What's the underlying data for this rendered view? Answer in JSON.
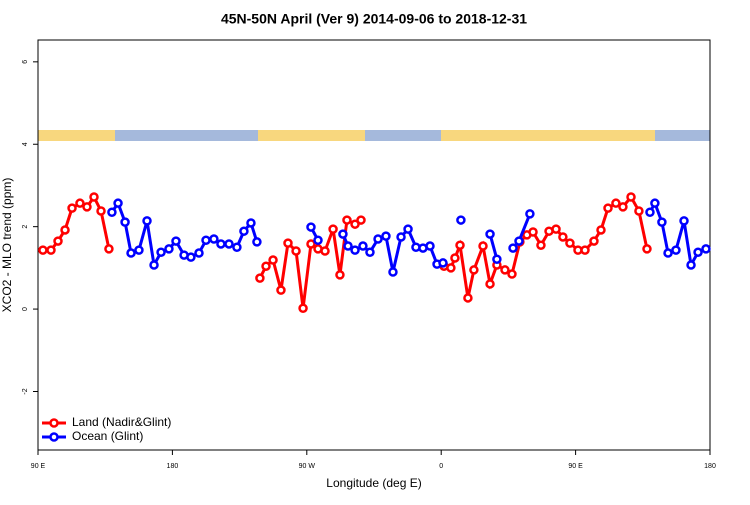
{
  "chart_data": {
    "type": "line",
    "title": "45N-50N April (Ver 9)   2014-09-06 to 2018-12-31",
    "x_label": "Longitude (deg E)",
    "y_label": "XCO2 - MLO trend (ppm)",
    "xlim": [
      90,
      540
    ],
    "xticks": [
      {
        "value": 90,
        "label": "90 E"
      },
      180,
      {
        "value": 270,
        "label": "90 W"
      },
      {
        "value": 360,
        "label": "0"
      },
      {
        "value": 450,
        "label": "90 E"
      },
      {
        "value": 540,
        "label": "180"
      }
    ],
    "ylim": [
      -3.42,
      6.53
    ],
    "yticks": [
      -2,
      0,
      2,
      4,
      6
    ],
    "legend": "bottomleft",
    "series": [
      {
        "name": "Land (Nadir&Glint)",
        "color": "#ff0000",
        "x": [
          93.3,
          98.7,
          103.4,
          108.1,
          112.8,
          118.1,
          122.8,
          127.5,
          132.2,
          137.5,
          null,
          238.6,
          242.7,
          247.4,
          252.7,
          257.4,
          262.8,
          267.5,
          272.8,
          277.5,
          282.2,
          287.6,
          292.2,
          296.9,
          302.3,
          306.3,
          null,
          361.9,
          366.5,
          369.2,
          372.6,
          377.9,
          381.9,
          388.0,
          392.7,
          397.3,
          402.7,
          407.4,
          412.7,
          417.4,
          421.5,
          426.8,
          432.2,
          436.9,
          441.5,
          446.2,
          451.6,
          456.3,
          462.3,
          467.0,
          471.7,
          477.0,
          481.7,
          487.1,
          492.4,
          497.8
        ],
        "values": [
          1.43,
          1.43,
          1.65,
          1.92,
          2.45,
          2.57,
          2.48,
          2.72,
          2.38,
          1.46,
          null,
          0.75,
          1.04,
          1.19,
          0.46,
          1.6,
          1.41,
          0.02,
          1.58,
          1.46,
          1.41,
          1.94,
          0.83,
          2.16,
          2.06,
          2.16,
          null,
          1.04,
          1.0,
          1.24,
          1.55,
          0.27,
          0.95,
          1.53,
          0.61,
          1.07,
          0.95,
          0.85,
          1.63,
          1.8,
          1.87,
          1.55,
          1.89,
          1.94,
          1.75,
          1.6,
          1.43,
          1.43,
          1.65,
          1.92,
          2.45,
          2.57,
          2.48,
          2.72,
          2.38,
          1.46
        ]
      },
      {
        "name": "Ocean (Glint)",
        "color": "#0000ff",
        "x": [
          139.5,
          143.6,
          148.3,
          152.3,
          157.6,
          163.0,
          167.7,
          172.4,
          177.7,
          182.4,
          187.8,
          192.4,
          197.8,
          202.5,
          207.8,
          212.5,
          217.9,
          223.2,
          227.9,
          232.6,
          236.6,
          null,
          272.8,
          277.5,
          null,
          294.2,
          297.6,
          302.3,
          307.6,
          312.3,
          317.7,
          323.0,
          327.7,
          333.1,
          337.8,
          343.1,
          347.8,
          352.5,
          357.2,
          361.2,
          null,
          373.2,
          null,
          392.7,
          397.3,
          null,
          408.1,
          412.1,
          419.4,
          null,
          499.8,
          503.1,
          507.8,
          511.9,
          517.2,
          522.6,
          527.3,
          532.0,
          537.3
        ],
        "values": [
          2.35,
          2.57,
          2.11,
          1.36,
          1.43,
          2.14,
          1.07,
          1.38,
          1.46,
          1.65,
          1.31,
          1.26,
          1.36,
          1.67,
          1.7,
          1.58,
          1.58,
          1.5,
          1.89,
          2.09,
          1.63,
          null,
          1.99,
          1.67,
          null,
          1.82,
          1.53,
          1.43,
          1.53,
          1.38,
          1.7,
          1.77,
          0.9,
          1.75,
          1.94,
          1.5,
          1.48,
          1.53,
          1.09,
          1.12,
          null,
          2.16,
          null,
          1.82,
          1.21,
          null,
          1.48,
          1.65,
          2.31,
          null,
          2.35,
          2.57,
          2.11,
          1.36,
          1.43,
          2.14,
          1.07,
          1.38,
          1.46
        ]
      }
    ]
  }
}
